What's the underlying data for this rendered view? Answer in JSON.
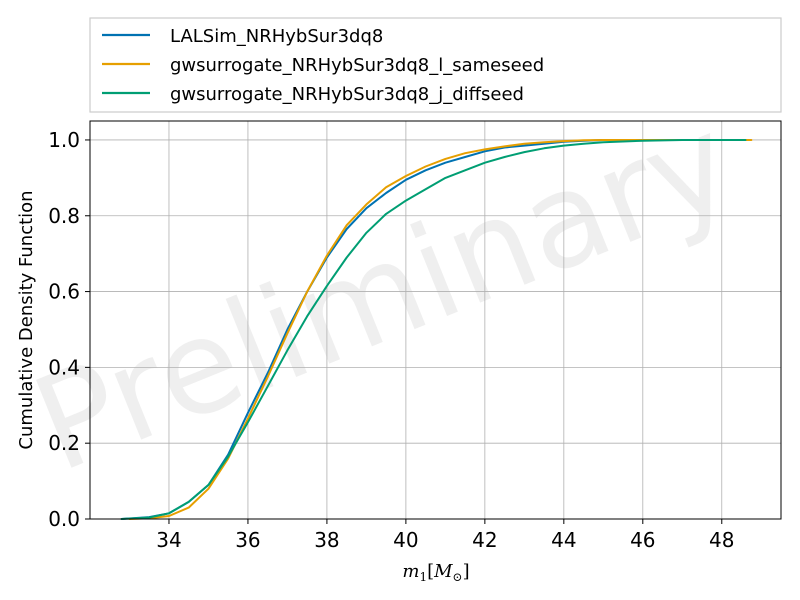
{
  "chart_data": {
    "type": "line",
    "title": "",
    "xlabel": "m_1[M_⊙]",
    "xlabel_parts": {
      "main": "m",
      "sub": "1",
      "bracket_open": "[",
      "unit": "M",
      "unit_sub": "⊙",
      "bracket_close": "]"
    },
    "ylabel": "Cumulative Density Function",
    "xlim": [
      32.0,
      49.5
    ],
    "ylim": [
      0.0,
      1.05
    ],
    "xticks": [
      34,
      36,
      38,
      40,
      42,
      44,
      46,
      48
    ],
    "xtick_labels": [
      "34",
      "36",
      "38",
      "40",
      "42",
      "44",
      "46",
      "48"
    ],
    "yticks": [
      0.0,
      0.2,
      0.4,
      0.6,
      0.8,
      1.0
    ],
    "ytick_labels": [
      "0.0",
      "0.2",
      "0.4",
      "0.6",
      "0.8",
      "1.0"
    ],
    "grid": true,
    "legend_position": "above",
    "watermark": "Preliminary",
    "series": [
      {
        "name": "LALSim_NRHybSur3dq8",
        "color": "#0072b2",
        "x": [
          32.8,
          33.5,
          34.0,
          34.5,
          35.0,
          35.5,
          36.0,
          36.5,
          37.0,
          37.5,
          38.0,
          38.5,
          39.0,
          39.5,
          40.0,
          40.5,
          41.0,
          41.5,
          42.0,
          42.5,
          43.0,
          43.5,
          44.0,
          44.5,
          45.0,
          46.0,
          47.0,
          48.0,
          48.6
        ],
        "y": [
          0.0,
          0.005,
          0.015,
          0.045,
          0.09,
          0.17,
          0.28,
          0.385,
          0.5,
          0.6,
          0.69,
          0.765,
          0.82,
          0.86,
          0.895,
          0.92,
          0.94,
          0.955,
          0.97,
          0.98,
          0.985,
          0.99,
          0.995,
          0.998,
          1.0,
          1.0,
          1.0,
          1.0,
          1.0
        ]
      },
      {
        "name": "gwsurrogate_NRHybSur3dq8_l_sameseed",
        "color": "#e69f00",
        "x": [
          33.0,
          33.5,
          34.0,
          34.5,
          35.0,
          35.5,
          36.0,
          36.5,
          37.0,
          37.5,
          38.0,
          38.5,
          39.0,
          39.5,
          40.0,
          40.5,
          41.0,
          41.5,
          42.0,
          42.5,
          43.0,
          43.5,
          44.0,
          44.5,
          45.0,
          46.0,
          47.0,
          48.0,
          48.75
        ],
        "y": [
          0.0,
          0.002,
          0.008,
          0.03,
          0.08,
          0.16,
          0.265,
          0.375,
          0.49,
          0.6,
          0.695,
          0.775,
          0.83,
          0.875,
          0.905,
          0.93,
          0.95,
          0.965,
          0.975,
          0.983,
          0.99,
          0.994,
          0.997,
          0.999,
          1.0,
          1.0,
          1.0,
          1.0,
          1.0
        ]
      },
      {
        "name": "gwsurrogate_NRHybSur3dq8_j_diffseed",
        "color": "#009e73",
        "x": [
          32.8,
          33.5,
          34.0,
          34.5,
          35.0,
          35.5,
          36.0,
          36.5,
          37.0,
          37.5,
          38.0,
          38.5,
          39.0,
          39.5,
          40.0,
          40.5,
          41.0,
          41.5,
          42.0,
          42.5,
          43.0,
          43.5,
          44.0,
          44.5,
          45.0,
          46.0,
          47.0,
          48.0,
          48.6
        ],
        "y": [
          0.0,
          0.004,
          0.015,
          0.045,
          0.09,
          0.165,
          0.255,
          0.35,
          0.445,
          0.535,
          0.615,
          0.69,
          0.755,
          0.805,
          0.84,
          0.87,
          0.9,
          0.92,
          0.94,
          0.955,
          0.968,
          0.978,
          0.985,
          0.99,
          0.994,
          0.998,
          1.0,
          1.0,
          1.0
        ]
      }
    ]
  }
}
